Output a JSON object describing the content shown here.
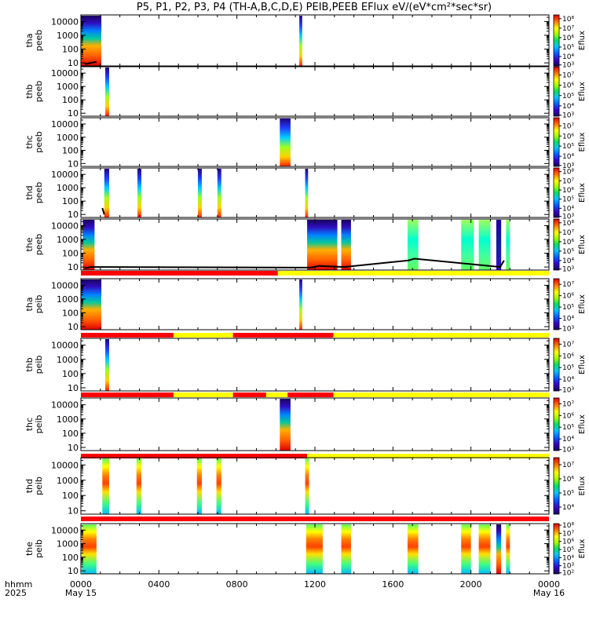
{
  "title": "P5, P1, P2, P3, P4 (TH-A,B,C,D,E) PEIB,PEEB EFlux eV/(eV*cm²*sec*sr)",
  "colors": {
    "flag_red": "#ff0000",
    "flag_yellow": "#ffff00",
    "trace": "#000000"
  },
  "x_axis": {
    "prefix_top": "hhmm",
    "prefix_bottom": "2025",
    "ticks": [
      {
        "hour": 0,
        "label": "0000",
        "sub": "May 15"
      },
      {
        "hour": 4,
        "label": "0400",
        "sub": ""
      },
      {
        "hour": 8,
        "label": "0800",
        "sub": ""
      },
      {
        "hour": 12,
        "label": "1200",
        "sub": ""
      },
      {
        "hour": 16,
        "label": "1600",
        "sub": ""
      },
      {
        "hour": 20,
        "label": "2000",
        "sub": ""
      },
      {
        "hour": 24,
        "label": "0000",
        "sub": "May 16"
      }
    ],
    "range_hours": [
      0,
      24
    ]
  },
  "chart_data": {
    "type": "heatmap",
    "panels": [
      {
        "probe": "tha",
        "product": "peeb",
        "y_ticks": [
          "10",
          "100",
          "1000",
          "10000"
        ],
        "yrange": [
          6,
          30000
        ],
        "cb_labels": [
          "10³",
          "10⁴",
          "10⁵",
          "10⁶",
          "10⁷",
          "10⁸"
        ],
        "cb_title": "Eflux",
        "cb_range": [
          3,
          8.4
        ],
        "blocks": [
          [
            0,
            1.05,
            "mixed"
          ],
          [
            11.2,
            11.35,
            "narrow"
          ]
        ],
        "trace": [
          [
            0.2,
            8
          ],
          [
            0.5,
            10
          ],
          [
            0.8,
            12
          ]
        ],
        "flag": []
      },
      {
        "probe": "thb",
        "product": "peeb",
        "y_ticks": [
          "10",
          "100",
          "1000",
          "10000"
        ],
        "yrange": [
          6,
          30000
        ],
        "cb_labels": [
          "10³",
          "10⁴",
          "10⁵",
          "10⁶",
          "10⁷"
        ],
        "cb_title": "Eflux",
        "cb_range": [
          3,
          7.8
        ],
        "blocks": [
          [
            1.25,
            1.45,
            "narrow"
          ]
        ],
        "trace": [],
        "flag": []
      },
      {
        "probe": "thc",
        "product": "peeb",
        "y_ticks": [
          "10",
          "100",
          "1000",
          "10000"
        ],
        "yrange": [
          6,
          30000
        ],
        "cb_labels": [
          "10³",
          "10⁴",
          "10⁵",
          "10⁶",
          "10⁷"
        ],
        "cb_title": "Eflux",
        "cb_range": [
          3,
          7.8
        ],
        "blocks": [
          [
            10.2,
            10.75,
            "narrow"
          ]
        ],
        "trace": [],
        "flag": []
      },
      {
        "probe": "thd",
        "product": "peeb",
        "y_ticks": [
          "10",
          "100",
          "1000",
          "10000"
        ],
        "yrange": [
          6,
          30000
        ],
        "cb_labels": [
          "10³",
          "10⁴",
          "10⁵",
          "10⁶",
          "10⁷",
          "10⁸"
        ],
        "cb_title": "Eflux",
        "cb_range": [
          3,
          8.4
        ],
        "blocks": [
          [
            1.2,
            1.45,
            "narrow"
          ],
          [
            2.9,
            3.1,
            "narrow"
          ],
          [
            6.0,
            6.2,
            "narrow"
          ],
          [
            7.0,
            7.2,
            "narrow"
          ],
          [
            11.5,
            11.65,
            "narrow"
          ]
        ],
        "trace": [
          [
            1.1,
            30
          ],
          [
            1.2,
            10
          ]
        ],
        "flag": []
      },
      {
        "probe": "the",
        "product": "peeb",
        "y_ticks": [
          "10",
          "100",
          "1000",
          "10000"
        ],
        "yrange": [
          6,
          30000
        ],
        "cb_labels": [
          "10³",
          "10⁴",
          "10⁵",
          "10⁶",
          "10⁷",
          "10⁸"
        ],
        "cb_title": "Eflux",
        "cb_range": [
          3,
          8.4
        ],
        "blocks": [
          [
            0.1,
            0.7,
            "mixed"
          ],
          [
            11.6,
            13.15,
            "mixed"
          ],
          [
            13.35,
            13.85,
            "mixed"
          ],
          [
            16.75,
            17.3,
            "green"
          ],
          [
            19.5,
            20.15,
            "green"
          ],
          [
            20.4,
            21.0,
            "green"
          ],
          [
            21.3,
            21.55,
            "dark"
          ],
          [
            21.8,
            22.0,
            "green"
          ]
        ],
        "trace": [
          [
            0.2,
            8
          ],
          [
            0.5,
            10
          ],
          [
            11.8,
            9
          ],
          [
            12.2,
            12
          ],
          [
            13.5,
            10
          ],
          [
            16.8,
            30
          ],
          [
            17.1,
            40
          ],
          [
            21.5,
            10
          ],
          [
            21.7,
            30
          ]
        ],
        "flag": [
          [
            0,
            10.1,
            "red"
          ],
          [
            10.1,
            24,
            "yellow"
          ]
        ]
      },
      {
        "probe": "tha",
        "product": "peib",
        "y_ticks": [
          "10",
          "100",
          "1000",
          "10000"
        ],
        "yrange": [
          6,
          30000
        ],
        "cb_labels": [
          "10³",
          "10⁴",
          "10⁵",
          "10⁶",
          "10⁷"
        ],
        "cb_title": "Eflux",
        "cb_range": [
          3,
          7.5
        ],
        "blocks": [
          [
            0,
            1.05,
            "mixed"
          ],
          [
            11.2,
            11.35,
            "narrow"
          ]
        ],
        "trace": [],
        "flag": [
          [
            0,
            4.75,
            "red"
          ],
          [
            4.75,
            7.8,
            "yellow"
          ],
          [
            7.8,
            12.95,
            "red"
          ],
          [
            12.95,
            24,
            "yellow"
          ]
        ]
      },
      {
        "probe": "thb",
        "product": "peib",
        "y_ticks": [
          "10",
          "100",
          "1000",
          "10000"
        ],
        "yrange": [
          6,
          30000
        ],
        "cb_labels": [
          "10³",
          "10⁴",
          "10⁵",
          "10⁶",
          "10⁷"
        ],
        "cb_title": "Eflux",
        "cb_range": [
          3,
          7.5
        ],
        "blocks": [
          [
            1.25,
            1.45,
            "narrow"
          ]
        ],
        "trace": [],
        "flag": [
          [
            0,
            4.75,
            "red"
          ],
          [
            4.75,
            7.8,
            "yellow"
          ],
          [
            7.8,
            9.5,
            "red"
          ],
          [
            9.5,
            10.6,
            "yellow"
          ],
          [
            10.6,
            12.95,
            "red"
          ],
          [
            12.95,
            24,
            "yellow"
          ]
        ]
      },
      {
        "probe": "thc",
        "product": "peib",
        "y_ticks": [
          "10",
          "100",
          "1000",
          "10000"
        ],
        "yrange": [
          6,
          30000
        ],
        "cb_labels": [
          "10³",
          "10⁴",
          "10⁵",
          "10⁶",
          "10⁷"
        ],
        "cb_title": "Eflux",
        "cb_range": [
          3,
          7.5
        ],
        "blocks": [
          [
            10.2,
            10.75,
            "mixed"
          ]
        ],
        "trace": [],
        "flag": [
          [
            0,
            11.6,
            "red"
          ],
          [
            11.6,
            24,
            "yellow"
          ]
        ]
      },
      {
        "probe": "thd",
        "product": "peib",
        "y_ticks": [
          "10",
          "100",
          "1000",
          "10000"
        ],
        "yrange": [
          6,
          30000
        ],
        "cb_labels": [
          "10⁴",
          "10⁵",
          "10⁶",
          "10⁷"
        ],
        "cb_title": "Eflux",
        "cb_range": [
          3.5,
          7.5
        ],
        "blocks": [
          [
            1.1,
            1.45,
            "ion"
          ],
          [
            2.85,
            3.1,
            "ion"
          ],
          [
            5.95,
            6.2,
            "ion"
          ],
          [
            6.95,
            7.2,
            "ion"
          ],
          [
            11.5,
            11.7,
            "ion"
          ]
        ],
        "trace": [],
        "flag": [
          [
            0,
            24,
            "red"
          ]
        ]
      },
      {
        "probe": "the",
        "product": "peib",
        "y_ticks": [
          "10",
          "100",
          "1000",
          "10000"
        ],
        "yrange": [
          6,
          30000
        ],
        "cb_labels": [
          "10²",
          "10³",
          "10⁴",
          "10⁵",
          "10⁶",
          "10⁷",
          "10⁸"
        ],
        "cb_title": "Eflux",
        "cb_range": [
          2,
          8.2
        ],
        "blocks": [
          [
            0.05,
            0.8,
            "ion"
          ],
          [
            11.55,
            12.4,
            "ion"
          ],
          [
            13.35,
            13.85,
            "ion"
          ],
          [
            16.75,
            17.3,
            "ion"
          ],
          [
            19.5,
            20.0,
            "ion"
          ],
          [
            20.4,
            21.0,
            "ion"
          ],
          [
            21.3,
            21.55,
            "mixed"
          ],
          [
            21.8,
            22.0,
            "ion"
          ]
        ],
        "trace": [],
        "flag": []
      }
    ]
  }
}
